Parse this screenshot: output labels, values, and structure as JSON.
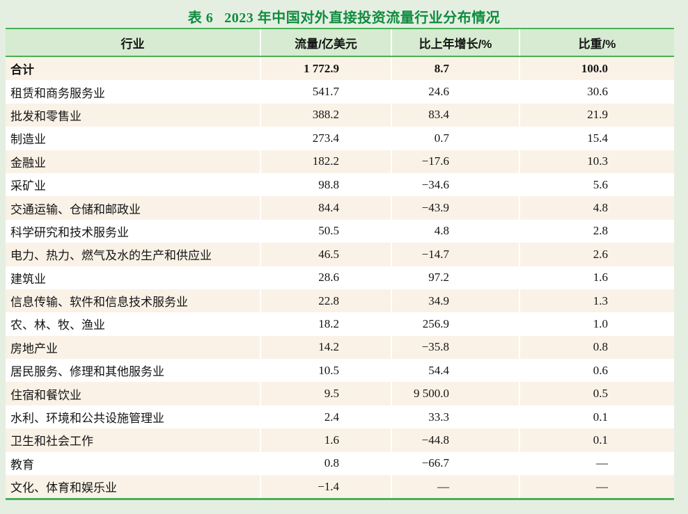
{
  "title": {
    "prefix": "表 6",
    "text": "2023 年中国对外直接投资流量行业分布情况"
  },
  "colors": {
    "page_background": "#e4efe2",
    "header_background": "#d6ebd1",
    "stripe_background": "#faf2e7",
    "rule_green": "#49b055",
    "title_green": "#0f8c3f"
  },
  "table": {
    "columns": [
      "行业",
      "流量/亿美元",
      "比上年增长/%",
      "比重/%"
    ],
    "rows": [
      {
        "industry": "合计",
        "flow": "1 772.9",
        "growth": "8.7",
        "share": "100.0",
        "bold": true
      },
      {
        "industry": "租赁和商务服务业",
        "flow": "541.7",
        "growth": "24.6",
        "share": "30.6",
        "bold": false
      },
      {
        "industry": "批发和零售业",
        "flow": "388.2",
        "growth": "83.4",
        "share": "21.9",
        "bold": false
      },
      {
        "industry": "制造业",
        "flow": "273.4",
        "growth": "0.7",
        "share": "15.4",
        "bold": false
      },
      {
        "industry": "金融业",
        "flow": "182.2",
        "growth": "−17.6",
        "share": "10.3",
        "bold": false
      },
      {
        "industry": "采矿业",
        "flow": "98.8",
        "growth": "−34.6",
        "share": "5.6",
        "bold": false
      },
      {
        "industry": "交通运输、仓储和邮政业",
        "flow": "84.4",
        "growth": "−43.9",
        "share": "4.8",
        "bold": false
      },
      {
        "industry": "科学研究和技术服务业",
        "flow": "50.5",
        "growth": "4.8",
        "share": "2.8",
        "bold": false
      },
      {
        "industry": "电力、热力、燃气及水的生产和供应业",
        "flow": "46.5",
        "growth": "−14.7",
        "share": "2.6",
        "bold": false
      },
      {
        "industry": "建筑业",
        "flow": "28.6",
        "growth": "97.2",
        "share": "1.6",
        "bold": false
      },
      {
        "industry": "信息传输、软件和信息技术服务业",
        "flow": "22.8",
        "growth": "34.9",
        "share": "1.3",
        "bold": false
      },
      {
        "industry": "农、林、牧、渔业",
        "flow": "18.2",
        "growth": "256.9",
        "share": "1.0",
        "bold": false
      },
      {
        "industry": "房地产业",
        "flow": "14.2",
        "growth": "−35.8",
        "share": "0.8",
        "bold": false
      },
      {
        "industry": "居民服务、修理和其他服务业",
        "flow": "10.5",
        "growth": "54.4",
        "share": "0.6",
        "bold": false
      },
      {
        "industry": "住宿和餐饮业",
        "flow": "9.5",
        "growth": "9 500.0",
        "share": "0.5",
        "bold": false
      },
      {
        "industry": "水利、环境和公共设施管理业",
        "flow": "2.4",
        "growth": "33.3",
        "share": "0.1",
        "bold": false
      },
      {
        "industry": "卫生和社会工作",
        "flow": "1.6",
        "growth": "−44.8",
        "share": "0.1",
        "bold": false
      },
      {
        "industry": "教育",
        "flow": "0.8",
        "growth": "−66.7",
        "share": "—",
        "bold": false
      },
      {
        "industry": "文化、体育和娱乐业",
        "flow": "−1.4",
        "growth": "—",
        "share": "—",
        "bold": false
      }
    ]
  }
}
